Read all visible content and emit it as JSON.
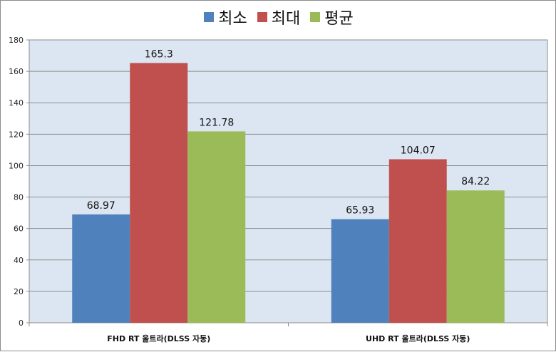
{
  "chart_data": {
    "type": "bar",
    "categories": [
      "FHD RT 울트라(DLSS 자동)",
      "UHD RT 울트라(DLSS 자동)"
    ],
    "series": [
      {
        "name": "최소",
        "values": [
          68.97,
          65.93
        ],
        "color": "#4f81bd"
      },
      {
        "name": "최대",
        "values": [
          165.3,
          104.07
        ],
        "color": "#c0504d"
      },
      {
        "name": "평균",
        "values": [
          121.78,
          84.22
        ],
        "color": "#9bbb59"
      }
    ],
    "data_labels": [
      [
        "68.97",
        "65.93"
      ],
      [
        "165.3",
        "104.07"
      ],
      [
        "121.78",
        "84.22"
      ]
    ],
    "ylim": [
      0,
      180
    ],
    "yticks": [
      0,
      20,
      40,
      60,
      80,
      100,
      120,
      140,
      160,
      180
    ],
    "grid": true,
    "legend_position": "top",
    "plot_background": "#dce6f2"
  }
}
